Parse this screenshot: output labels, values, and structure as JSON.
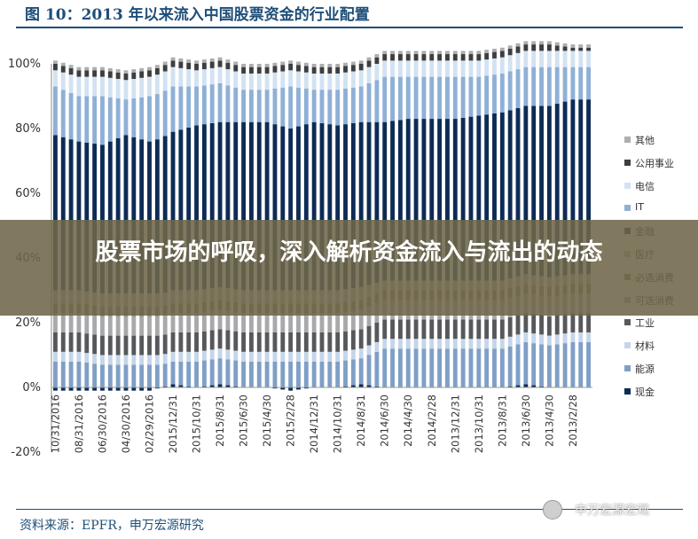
{
  "title": "图 10：2013 年以来流入中国股票资金的行业配置",
  "headline": "股票市场的呼吸，深入解析资金流入与流出的动态",
  "source": "资料来源：EPFR，申万宏源研究",
  "watermark": "申万宏源宏观",
  "chart_data": {
    "type": "bar",
    "stacked": true,
    "title": "",
    "xlabel": "",
    "ylabel": "",
    "ylim": [
      -20,
      100
    ],
    "yticks": [
      "-20%",
      "0%",
      "20%",
      "40%",
      "60%",
      "80%",
      "100%"
    ],
    "grid": false,
    "legend_position": "right",
    "categories": [
      "10/31/2016",
      "08/31/2016",
      "06/30/2016",
      "04/30/2016",
      "02/29/2016",
      "2015/12/31",
      "2015/10/31",
      "2015/8/31",
      "2015/6/30",
      "2015/4/30",
      "2015/2/28",
      "2014/12/31",
      "2014/10/31",
      "2014/8/31",
      "2014/6/30",
      "2014/4/30",
      "2014/2/28",
      "2013/12/31",
      "2013/10/31",
      "2013/8/31",
      "2013/6/30",
      "2013/4/30",
      "2013/2/28"
    ],
    "series": [
      {
        "name": "现金",
        "color": "#0d2b55",
        "values": [
          -1,
          -1,
          -1,
          -1,
          -1,
          1,
          0,
          1,
          0,
          0,
          -1,
          0,
          0,
          1,
          0,
          0,
          0,
          0,
          0,
          0,
          1,
          0,
          0
        ]
      },
      {
        "name": "能源",
        "color": "#7f9fc6",
        "values": [
          8,
          8,
          7,
          7,
          7,
          7,
          8,
          8,
          8,
          8,
          8,
          8,
          8,
          8,
          12,
          12,
          12,
          12,
          12,
          12,
          13,
          13,
          14
        ]
      },
      {
        "name": "材料",
        "color": "#c5d6ea",
        "values": [
          3,
          3,
          3,
          3,
          3,
          3,
          3,
          3,
          3,
          3,
          3,
          3,
          3,
          3,
          3,
          3,
          3,
          3,
          3,
          3,
          3,
          3,
          3
        ]
      },
      {
        "name": "工业",
        "color": "#57585b",
        "values": [
          6,
          6,
          6,
          6,
          6,
          6,
          6,
          6,
          6,
          6,
          6,
          6,
          6,
          6,
          6,
          6,
          6,
          6,
          6,
          6,
          6,
          6,
          6
        ]
      },
      {
        "name": "可选消费",
        "color": "#a8a9ab",
        "values": [
          6,
          6,
          6,
          6,
          6,
          6,
          6,
          6,
          6,
          6,
          6,
          6,
          6,
          6,
          6,
          6,
          6,
          6,
          6,
          6,
          6,
          6,
          6
        ]
      },
      {
        "name": "必选消费",
        "color": "#8f7f5e",
        "values": [
          3,
          3,
          3,
          3,
          3,
          3,
          3,
          3,
          3,
          3,
          3,
          3,
          3,
          3,
          3,
          3,
          3,
          3,
          3,
          3,
          3,
          3,
          3
        ]
      },
      {
        "name": "医疗",
        "color": "#bdb59a",
        "values": [
          4,
          4,
          4,
          4,
          4,
          4,
          4,
          4,
          4,
          4,
          4,
          4,
          4,
          4,
          3,
          3,
          3,
          3,
          3,
          3,
          3,
          3,
          3
        ]
      },
      {
        "name": "金融",
        "color": "#0d2b55",
        "values": [
          48,
          46,
          46,
          49,
          47,
          49,
          51,
          51,
          52,
          52,
          50,
          52,
          51,
          51,
          49,
          50,
          50,
          50,
          51,
          52,
          52,
          53,
          54
        ]
      },
      {
        "name": "IT",
        "color": "#8fb0d6",
        "values": [
          15,
          14,
          15,
          11,
          14,
          14,
          12,
          12,
          10,
          10,
          13,
          10,
          11,
          11,
          14,
          13,
          13,
          13,
          12,
          12,
          12,
          12,
          10
        ]
      },
      {
        "name": "电信",
        "color": "#d2e2f2",
        "values": [
          5,
          6,
          6,
          6,
          6,
          6,
          5,
          5,
          5,
          5,
          5,
          5,
          5,
          5,
          5,
          5,
          5,
          5,
          5,
          5,
          5,
          5,
          5
        ]
      },
      {
        "name": "公用事业",
        "color": "#3d3e40",
        "values": [
          2,
          2,
          2,
          2,
          2,
          2,
          2,
          2,
          2,
          2,
          2,
          2,
          2,
          2,
          2,
          2,
          2,
          2,
          2,
          2,
          2,
          2,
          1
        ]
      },
      {
        "name": "其他",
        "color": "#adaeb0",
        "values": [
          1,
          1,
          1,
          1,
          1,
          1,
          1,
          1,
          1,
          1,
          1,
          1,
          1,
          1,
          1,
          1,
          1,
          1,
          1,
          1,
          1,
          1,
          1
        ]
      }
    ],
    "legend_order": [
      "其他",
      "公用事业",
      "电信",
      "IT",
      "金融",
      "医疗",
      "必选消费",
      "可选消费",
      "工业",
      "材料",
      "能源",
      "现金"
    ]
  }
}
